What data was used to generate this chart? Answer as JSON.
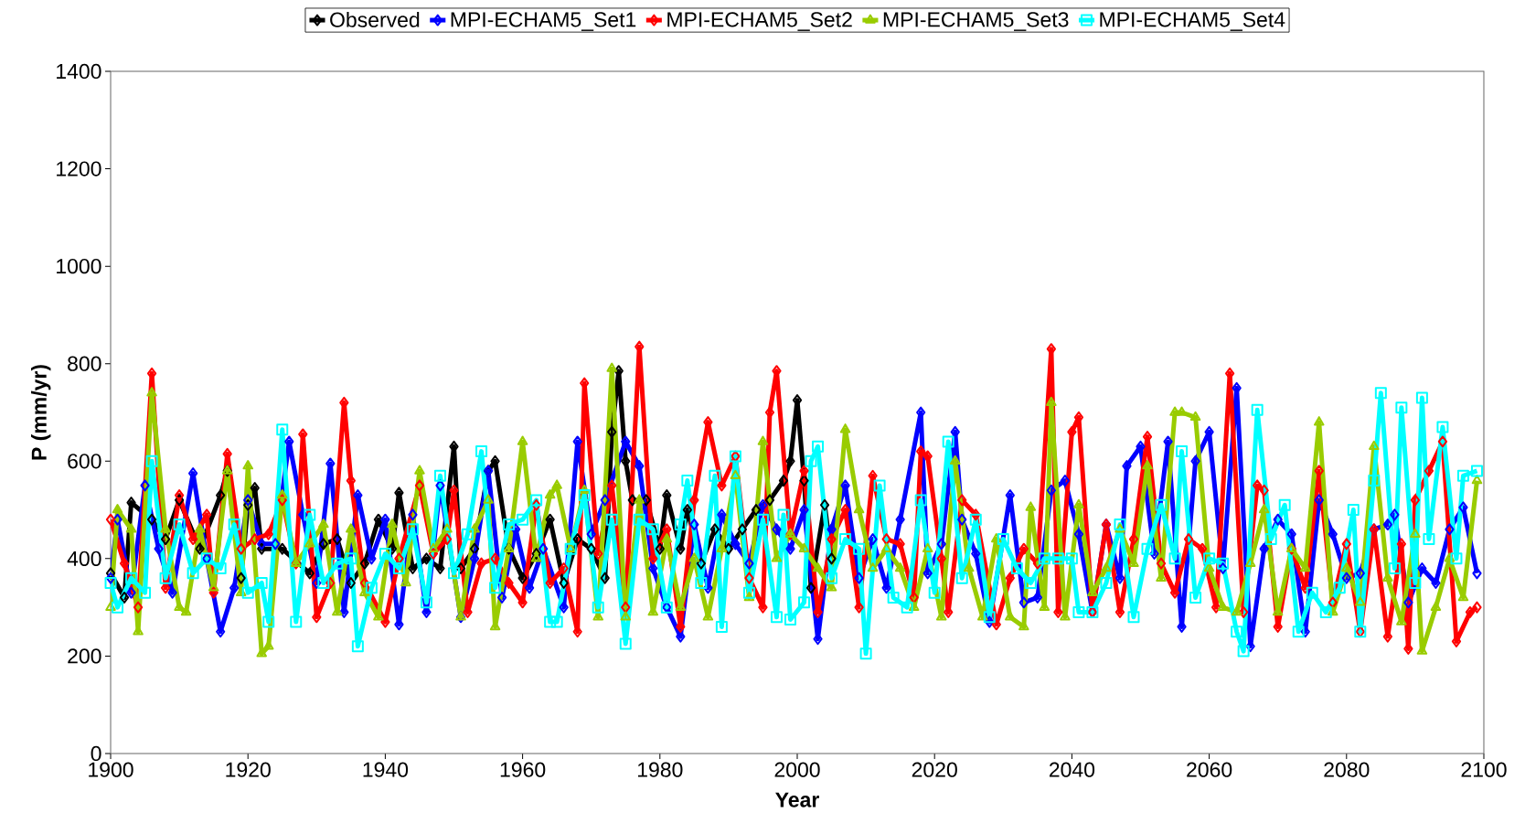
{
  "chart_data": {
    "type": "line",
    "xlabel": "Year",
    "ylabel": "P (mm/yr)",
    "xlim": [
      1900,
      2100
    ],
    "xticks": [
      1900,
      1920,
      1940,
      1960,
      1980,
      2000,
      2020,
      2040,
      2060,
      2080,
      2100
    ],
    "ylim": [
      0,
      1400
    ],
    "yticks": [
      0,
      200,
      400,
      600,
      800,
      1000,
      1200,
      1400
    ],
    "grid": false,
    "legend": "top",
    "line_style": "solid",
    "series": [
      {
        "name": "Observed",
        "color": "#000000",
        "marker": "diamond",
        "x": [
          1900,
          1902,
          1903,
          1906,
          1908,
          1910,
          1913,
          1916,
          1917,
          1919,
          1920,
          1921,
          1922,
          1925,
          1929,
          1931,
          1933,
          1935,
          1937,
          1939,
          1941,
          1942,
          1944,
          1946,
          1948,
          1950,
          1951,
          1953,
          1955,
          1956,
          1958,
          1960,
          1962,
          1964,
          1966,
          1968,
          1970,
          1972,
          1973,
          1974,
          1975,
          1976,
          1978,
          1980,
          1981,
          1983,
          1984,
          1986,
          1988,
          1990,
          1992,
          1994,
          1996,
          1998,
          1999,
          2000,
          2001,
          2002,
          2004,
          2005
        ],
        "values": [
          370,
          320,
          515,
          480,
          440,
          520,
          420,
          530,
          580,
          360,
          510,
          545,
          420,
          420,
          370,
          430,
          440,
          350,
          390,
          480,
          420,
          535,
          380,
          400,
          380,
          630,
          380,
          420,
          580,
          600,
          420,
          360,
          410,
          480,
          350,
          440,
          420,
          360,
          660,
          785,
          600,
          520,
          520,
          420,
          530,
          420,
          500,
          390,
          460,
          420,
          460,
          500,
          520,
          560,
          600,
          725,
          560,
          340,
          510,
          400
        ]
      },
      {
        "name": "MPI-ECHAM5_Set1",
        "color": "#0000ff",
        "marker": "diamond",
        "x": [
          1900,
          1901,
          1903,
          1905,
          1907,
          1909,
          1912,
          1914,
          1916,
          1918,
          1920,
          1922,
          1924,
          1926,
          1928,
          1930,
          1932,
          1934,
          1936,
          1938,
          1940,
          1942,
          1944,
          1946,
          1948,
          1951,
          1953,
          1955,
          1957,
          1959,
          1961,
          1963,
          1966,
          1968,
          1970,
          1972,
          1975,
          1977,
          1979,
          1981,
          1983,
          1985,
          1987,
          1989,
          1991,
          1993,
          1995,
          1997,
          1999,
          2001,
          2003,
          2005,
          2007,
          2009,
          2011,
          2013,
          2015,
          2018,
          2019,
          2021,
          2023,
          2024,
          2026,
          2028,
          2031,
          2033,
          2035,
          2037,
          2039,
          2041,
          2043,
          2045,
          2047,
          2048,
          2050,
          2052,
          2054,
          2056,
          2058,
          2060,
          2062,
          2064,
          2066,
          2068,
          2070,
          2072,
          2074,
          2076,
          2078,
          2080,
          2082,
          2084,
          2086,
          2087,
          2089,
          2091,
          2093,
          2095,
          2097,
          2099
        ],
        "values": [
          360,
          480,
          330,
          550,
          420,
          330,
          575,
          400,
          250,
          340,
          520,
          430,
          430,
          640,
          490,
          350,
          595,
          290,
          530,
          400,
          480,
          265,
          490,
          290,
          550,
          280,
          400,
          580,
          320,
          460,
          340,
          420,
          300,
          640,
          450,
          520,
          640,
          590,
          380,
          300,
          240,
          470,
          340,
          490,
          430,
          390,
          510,
          460,
          420,
          500,
          235,
          460,
          550,
          360,
          440,
          340,
          480,
          700,
          370,
          430,
          660,
          480,
          410,
          270,
          530,
          310,
          320,
          540,
          560,
          450,
          290,
          470,
          360,
          590,
          630,
          410,
          640,
          260,
          600,
          660,
          380,
          750,
          220,
          420,
          480,
          450,
          250,
          520,
          450,
          360,
          370,
          460,
          470,
          490,
          310,
          380,
          350,
          460,
          505,
          370
        ]
      },
      {
        "name": "MPI-ECHAM5_Set2",
        "color": "#ff0000",
        "marker": "diamond",
        "x": [
          1900,
          1902,
          1904,
          1906,
          1908,
          1910,
          1912,
          1914,
          1915,
          1917,
          1919,
          1921,
          1923,
          1925,
          1927,
          1928,
          1930,
          1932,
          1934,
          1935,
          1937,
          1940,
          1942,
          1945,
          1947,
          1949,
          1950,
          1952,
          1954,
          1956,
          1958,
          1960,
          1962,
          1964,
          1966,
          1968,
          1969,
          1971,
          1973,
          1975,
          1977,
          1979,
          1981,
          1983,
          1985,
          1987,
          1989,
          1991,
          1993,
          1995,
          1996,
          1997,
          1999,
          2001,
          2003,
          2005,
          2007,
          2009,
          2011,
          2013,
          2015,
          2017,
          2018,
          2019,
          2021,
          2022,
          2024,
          2026,
          2029,
          2031,
          2033,
          2035,
          2037,
          2038,
          2040,
          2041,
          2043,
          2045,
          2047,
          2049,
          2051,
          2053,
          2055,
          2057,
          2059,
          2061,
          2063,
          2065,
          2067,
          2068,
          2070,
          2072,
          2074,
          2076,
          2078,
          2080,
          2082,
          2084,
          2086,
          2088,
          2089,
          2090,
          2092,
          2094,
          2096,
          2098,
          2099
        ],
        "values": [
          480,
          390,
          300,
          780,
          340,
          530,
          440,
          490,
          330,
          615,
          420,
          440,
          450,
          520,
          390,
          655,
          280,
          350,
          720,
          560,
          350,
          270,
          400,
          550,
          410,
          440,
          540,
          290,
          390,
          400,
          350,
          310,
          510,
          350,
          380,
          250,
          760,
          410,
          550,
          300,
          835,
          400,
          460,
          260,
          520,
          680,
          550,
          610,
          360,
          300,
          700,
          785,
          450,
          580,
          290,
          440,
          500,
          300,
          570,
          440,
          430,
          320,
          620,
          610,
          400,
          290,
          520,
          490,
          265,
          360,
          420,
          390,
          830,
          290,
          660,
          690,
          290,
          470,
          290,
          440,
          650,
          390,
          330,
          440,
          420,
          300,
          780,
          290,
          550,
          540,
          260,
          420,
          340,
          580,
          310,
          430,
          250,
          460,
          240,
          430,
          215,
          520,
          580,
          640,
          230,
          290,
          300
        ]
      },
      {
        "name": "MPI-ECHAM5_Set3",
        "color": "#99cc00",
        "marker": "triangle",
        "x": [
          1900,
          1901,
          1903,
          1904,
          1906,
          1908,
          1910,
          1911,
          1913,
          1915,
          1917,
          1919,
          1920,
          1922,
          1923,
          1925,
          1927,
          1929,
          1931,
          1933,
          1935,
          1937,
          1939,
          1941,
          1943,
          1945,
          1947,
          1949,
          1951,
          1953,
          1955,
          1956,
          1958,
          1960,
          1962,
          1964,
          1965,
          1967,
          1969,
          1971,
          1973,
          1975,
          1977,
          1979,
          1981,
          1983,
          1985,
          1987,
          1989,
          1991,
          1993,
          1995,
          1997,
          1999,
          2001,
          2003,
          2005,
          2007,
          2009,
          2011,
          2013,
          2015,
          2017,
          2019,
          2021,
          2023,
          2025,
          2027,
          2029,
          2031,
          2033,
          2034,
          2036,
          2037,
          2039,
          2041,
          2043,
          2045,
          2047,
          2049,
          2051,
          2053,
          2055,
          2056,
          2058,
          2060,
          2062,
          2064,
          2066,
          2068,
          2070,
          2072,
          2074,
          2076,
          2078,
          2080,
          2082,
          2084,
          2086,
          2088,
          2090,
          2091,
          2093,
          2095,
          2097,
          2099
        ],
        "values": [
          300,
          500,
          460,
          250,
          740,
          460,
          300,
          290,
          460,
          340,
          580,
          330,
          590,
          205,
          220,
          530,
          390,
          430,
          470,
          290,
          460,
          330,
          280,
          470,
          350,
          580,
          420,
          460,
          280,
          460,
          520,
          260,
          420,
          640,
          400,
          530,
          550,
          420,
          540,
          280,
          790,
          280,
          520,
          290,
          440,
          300,
          400,
          280,
          420,
          570,
          320,
          640,
          400,
          450,
          420,
          380,
          340,
          665,
          500,
          380,
          420,
          380,
          300,
          420,
          280,
          600,
          380,
          280,
          440,
          280,
          260,
          505,
          300,
          720,
          280,
          510,
          330,
          380,
          460,
          390,
          590,
          360,
          700,
          700,
          690,
          380,
          300,
          290,
          390,
          500,
          290,
          420,
          380,
          680,
          290,
          380,
          310,
          630,
          360,
          270,
          450,
          210,
          300,
          400,
          320,
          560
        ]
      },
      {
        "name": "MPI-ECHAM5_Set4",
        "color": "#00ffff",
        "marker": "square",
        "x": [
          1900,
          1901,
          1903,
          1905,
          1906,
          1908,
          1910,
          1912,
          1914,
          1916,
          1918,
          1920,
          1922,
          1923,
          1925,
          1927,
          1929,
          1931,
          1933,
          1935,
          1936,
          1938,
          1940,
          1942,
          1944,
          1946,
          1948,
          1950,
          1952,
          1954,
          1956,
          1958,
          1960,
          1962,
          1964,
          1965,
          1967,
          1969,
          1971,
          1973,
          1975,
          1977,
          1979,
          1981,
          1983,
          1984,
          1986,
          1988,
          1989,
          1991,
          1993,
          1995,
          1997,
          1998,
          1999,
          2001,
          2002,
          2003,
          2005,
          2007,
          2009,
          2010,
          2012,
          2014,
          2016,
          2018,
          2020,
          2022,
          2024,
          2026,
          2028,
          2030,
          2032,
          2034,
          2036,
          2038,
          2040,
          2041,
          2043,
          2045,
          2047,
          2049,
          2051,
          2053,
          2055,
          2056,
          2058,
          2060,
          2062,
          2064,
          2065,
          2067,
          2069,
          2071,
          2073,
          2075,
          2077,
          2079,
          2081,
          2082,
          2084,
          2085,
          2087,
          2088,
          2090,
          2091,
          2092,
          2094,
          2096,
          2097,
          2099
        ],
        "values": [
          350,
          300,
          360,
          330,
          600,
          360,
          470,
          370,
          400,
          380,
          470,
          330,
          350,
          270,
          665,
          270,
          490,
          350,
          390,
          400,
          220,
          340,
          410,
          380,
          460,
          310,
          570,
          370,
          450,
          620,
          340,
          470,
          480,
          520,
          270,
          270,
          420,
          530,
          300,
          480,
          225,
          480,
          460,
          300,
          470,
          560,
          350,
          570,
          260,
          610,
          330,
          480,
          280,
          490,
          275,
          310,
          600,
          630,
          360,
          440,
          420,
          205,
          550,
          320,
          300,
          520,
          330,
          640,
          360,
          480,
          280,
          440,
          380,
          350,
          400,
          400,
          400,
          290,
          290,
          350,
          470,
          280,
          420,
          510,
          400,
          620,
          320,
          400,
          390,
          250,
          210,
          705,
          440,
          510,
          250,
          330,
          290,
          340,
          500,
          250,
          560,
          740,
          380,
          710,
          350,
          730,
          440,
          670,
          400,
          570,
          580
        ]
      }
    ]
  }
}
